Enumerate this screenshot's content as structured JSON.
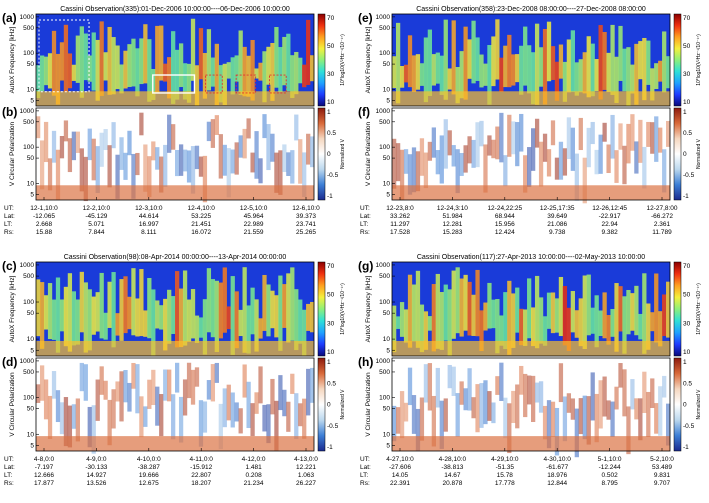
{
  "colorbars": {
    "flux": {
      "label": "10*log10(V²Hz⁻¹/10⁻¹⁷)",
      "ticks": [
        "70",
        "50",
        "30",
        "10"
      ],
      "colors": [
        "#08087a",
        "#1e3cff",
        "#1fa2ff",
        "#2fe0d8",
        "#8ef07a",
        "#f5f03c",
        "#ffa020",
        "#f03010",
        "#8a0000"
      ]
    },
    "pol": {
      "label": "Normalized V",
      "ticks": [
        "1",
        "0.5",
        "0",
        "-0.5",
        "-1"
      ],
      "colors": [
        "#1a2a8f",
        "#3d7fd6",
        "#bcd8ee",
        "#ffffff",
        "#f5d7bf",
        "#d96a3a",
        "#8c1a0e"
      ]
    }
  },
  "chart_data": [
    {
      "type": "heatmap",
      "panel_label": "(a)",
      "title": "Cassini Observation(335):01-Dec-2006 10:00:00----06-Dec-2006 10:00:00",
      "ylabel": "AutoX Frequency [kHz]",
      "yticks": [
        "1000",
        "500",
        "100",
        "50",
        "10",
        "5"
      ],
      "colorbar": "flux",
      "colorbar_ticks": [
        "70",
        "50",
        "30",
        "10"
      ],
      "colorbar_label": "10*log10(V²Hz⁻¹/10⁻¹⁷)",
      "ylim_khz": [
        3.5,
        1200
      ],
      "dotted_regions_h": [
        [
          0.0,
          0.18
        ]
      ],
      "solid_box_h": [
        0.42,
        0.57,
        8,
        25
      ],
      "dashed_small_h": [
        0.61,
        0.67,
        0.72,
        0.79,
        0.84,
        0.9
      ]
    },
    {
      "type": "heatmap",
      "panel_label": "(b)",
      "ylabel": "V Circular Polarization",
      "yticks": [
        "1000",
        "500",
        "100",
        "50",
        "10",
        "5"
      ],
      "colorbar": "pol",
      "colorbar_ticks": [
        "1",
        "0.5",
        "0",
        "-0.5",
        "-1"
      ],
      "colorbar_label": "Normalized V",
      "xticks": [
        "12-1,10:0",
        "12-2,10:0",
        "12-3,10:0",
        "12-4,10:0",
        "12-5,10:0",
        "12-6,10:0"
      ],
      "ephem_labels": [
        "UT:",
        "Lat:",
        "LT:",
        "Rs:"
      ],
      "ephem": [
        [
          "-12.065",
          "2.668",
          "15.88"
        ],
        [
          "-45.129",
          "5.071",
          "7.844"
        ],
        [
          "44.614",
          "16.997",
          "8.111"
        ],
        [
          "53.225",
          "21.451",
          "16.072"
        ],
        [
          "45.964",
          "22.989",
          "21.559"
        ],
        [
          "39.373",
          "23.741",
          "25.265"
        ]
      ]
    },
    {
      "type": "heatmap",
      "panel_label": "(c)",
      "title": "Cassini Observation(98):08-Apr-2014 00:00:00----13-Apr-2014 00:00:00",
      "ylabel": "AutoX Frequency [kHz]",
      "yticks": [
        "1000",
        "500",
        "100",
        "50",
        "10",
        "5"
      ],
      "colorbar": "flux",
      "colorbar_ticks": [
        "70",
        "50",
        "30",
        "10"
      ],
      "colorbar_label": "10*log10(V²Hz⁻¹/10⁻¹⁷)"
    },
    {
      "type": "heatmap",
      "panel_label": "(d)",
      "ylabel": "V Circular Polarization",
      "yticks": [
        "1000",
        "500",
        "100",
        "50",
        "10",
        "5"
      ],
      "colorbar": "pol",
      "colorbar_ticks": [
        "1",
        "0.5",
        "0",
        "-0.5",
        "-1"
      ],
      "colorbar_label": "Normalized V",
      "xticks": [
        "4-8,0:0",
        "4-9,0:0",
        "4-10,0:0",
        "4-11,0:0",
        "4-12,0:0",
        "4-13,0:0"
      ],
      "ephem_labels": [
        "UT:",
        "Lat:",
        "LT:",
        "Rs:"
      ],
      "ephem": [
        [
          "-7.197",
          "12.666",
          "17.877"
        ],
        [
          "-30.133",
          "14.927",
          "13.526"
        ],
        [
          "-38.287",
          "19.666",
          "12.675"
        ],
        [
          "-15.912",
          "22.807",
          "18.207"
        ],
        [
          "1.481",
          "0.208",
          "21.234"
        ],
        [
          "12.221",
          "1.063",
          "26.227"
        ]
      ]
    },
    {
      "type": "heatmap",
      "panel_label": "(e)",
      "title": "Cassini Observation(358):23-Dec-2008 08:00:00----27-Dec-2008 08:00:00",
      "ylabel": "AutoX Frequency [kHz]",
      "yticks": [
        "1000",
        "500",
        "100",
        "50",
        "10",
        "5"
      ],
      "colorbar": "flux",
      "colorbar_ticks": [
        "70",
        "50",
        "30",
        "10"
      ],
      "colorbar_label": "10*log10(V²Hz⁻¹/10⁻¹⁷)"
    },
    {
      "type": "heatmap",
      "panel_label": "(f)",
      "ylabel": "V Circular Polarization",
      "yticks": [
        "1000",
        "500",
        "100",
        "50",
        "10",
        "5"
      ],
      "colorbar": "pol",
      "colorbar_ticks": [
        "1",
        "0.5",
        "0",
        "-0.5",
        "-1"
      ],
      "colorbar_label": "Normalized V",
      "xticks": [
        "12-23,8:0",
        "12-24,3:10",
        "12-24,22:25",
        "12-25,17:35",
        "12-26,12:45",
        "12-27,8:00"
      ],
      "ephem_labels": [
        "UT:",
        "Lat:",
        "LT:",
        "Rs:"
      ],
      "ephem": [
        [
          "33.262",
          "11.297",
          "17.528"
        ],
        [
          "51.984",
          "12.281",
          "15.283"
        ],
        [
          "68.944",
          "15.956",
          "12.424"
        ],
        [
          "39.649",
          "21.086",
          "9.738"
        ],
        [
          "-22.917",
          "22.94",
          "9.382"
        ],
        [
          "-66.272",
          "2.361",
          "11.789"
        ]
      ]
    },
    {
      "type": "heatmap",
      "panel_label": "(g)",
      "title": "Cassini Observation(117):27-Apr-2013 10:00:00----02-May-2013 10:00:00",
      "ylabel": "AutoX Frequency [kHz]",
      "yticks": [
        "1000",
        "500",
        "100",
        "50",
        "10",
        "5"
      ],
      "colorbar": "flux",
      "colorbar_ticks": [
        "70",
        "50",
        "30",
        "10"
      ],
      "colorbar_label": "10*log10(V²Hz⁻¹/10⁻¹⁷)"
    },
    {
      "type": "heatmap",
      "panel_label": "(h)",
      "ylabel": "V Circular Polarization",
      "yticks": [
        "1000",
        "500",
        "100",
        "50",
        "10",
        "5"
      ],
      "colorbar": "pol",
      "colorbar_ticks": [
        "1",
        "0.5",
        "0",
        "-0.5",
        "-1"
      ],
      "colorbar_label": "Normalized V",
      "xticks": [
        "4-27,10:0",
        "4-28,10:0",
        "4-29,10:0",
        "4-30,10:0",
        "5-1,10:0",
        "5-2,10:0"
      ],
      "ephem_labels": [
        "UT:",
        "Lat:",
        "LT:",
        "Rs:"
      ],
      "ephem": [
        [
          "-27.606",
          "14.05",
          "22.391"
        ],
        [
          "-38.813",
          "14.67",
          "20.878"
        ],
        [
          "-51.35",
          "15.78",
          "17.778"
        ],
        [
          "-61.677",
          "18.976",
          "12.844"
        ],
        [
          "-12.244",
          "0.502",
          "8.795"
        ],
        [
          "53.489",
          "9.831",
          "9.707"
        ]
      ]
    }
  ]
}
